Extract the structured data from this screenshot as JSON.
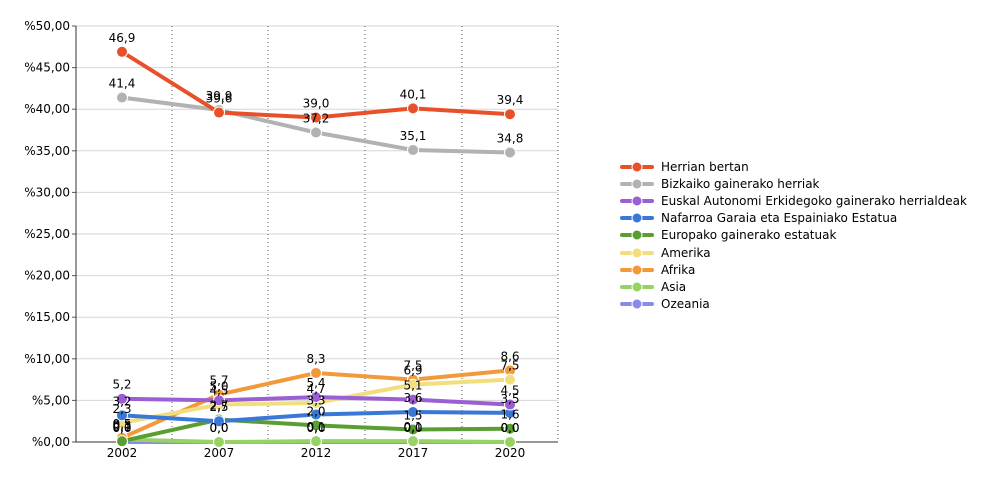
{
  "chart_data": {
    "type": "line",
    "categories": [
      "2002",
      "2007",
      "2012",
      "2017",
      "2020"
    ],
    "ylim": [
      0,
      50
    ],
    "yticks": [
      0,
      5,
      10,
      15,
      20,
      25,
      30,
      35,
      40,
      45,
      50
    ],
    "ytick_labels": [
      "%0,00",
      "%5,00",
      "%10,00",
      "%15,00",
      "%20,00",
      "%25,00",
      "%30,00",
      "%35,00",
      "%40,00",
      "%45,00",
      "%50,00"
    ],
    "grid": "horizontal solid, vertical dotted",
    "legend_position": "right",
    "series": [
      {
        "name": "Herrian bertan",
        "color": "#e8502a",
        "values": [
          46.9,
          39.6,
          39.0,
          40.1,
          39.4
        ],
        "labels": [
          "46,9",
          "39,6",
          "39,0",
          "40,1",
          "39,4"
        ]
      },
      {
        "name": "Bizkaiko gainerako herriak",
        "color": "#b2b2b2",
        "values": [
          41.4,
          39.9,
          37.2,
          35.1,
          34.8
        ],
        "labels": [
          "41,4",
          "39,9",
          "37,2",
          "35,1",
          "34,8"
        ]
      },
      {
        "name": "Euskal Autonomi Erkidegoko gainerako herrialdeak",
        "color": "#9a5fd2",
        "values": [
          5.2,
          5.0,
          5.4,
          5.1,
          4.5
        ],
        "labels": [
          "5,2",
          "5,0",
          "5,4",
          "5,1",
          "4,5"
        ]
      },
      {
        "name": "Nafarroa Garaia eta Espainiako Estatua",
        "color": "#3a78d8",
        "values": [
          3.2,
          2.5,
          3.3,
          3.6,
          3.5
        ],
        "labels": [
          "3,2",
          "2,5",
          "3,3",
          "3,6",
          "3,5"
        ]
      },
      {
        "name": "Europako gainerako estatuak",
        "color": "#5a9e32",
        "values": [
          0.1,
          2.7,
          2.0,
          1.5,
          1.6
        ],
        "labels": [
          "0,1",
          "2,7",
          "2,0",
          "1,5",
          "1,6"
        ]
      },
      {
        "name": "Amerika",
        "color": "#f2de7c",
        "values": [
          2.3,
          4.5,
          4.7,
          6.9,
          7.5
        ],
        "labels": [
          "2,3",
          "4,5",
          "4,7",
          "6,9",
          "7,5"
        ]
      },
      {
        "name": "Afrika",
        "color": "#f29a3a",
        "values": [
          0.5,
          5.7,
          8.3,
          7.5,
          8.6
        ],
        "labels": [
          "0,5",
          "5,7",
          "8,3",
          "7,5",
          "8,6"
        ]
      },
      {
        "name": "Asia",
        "color": "#96d264",
        "values": [
          0.3,
          0.0,
          0.1,
          0.1,
          0.0
        ],
        "labels": [
          "0,3",
          "0,0",
          "0,1",
          "0,1",
          "0,0"
        ]
      },
      {
        "name": "Ozeania",
        "color": "#8a8aea",
        "values": [
          0.0,
          0.0,
          0.0,
          0.0,
          0.0
        ],
        "labels": [
          "0,0",
          "0,0",
          "0,0",
          "0,0",
          "0,0"
        ]
      }
    ]
  }
}
